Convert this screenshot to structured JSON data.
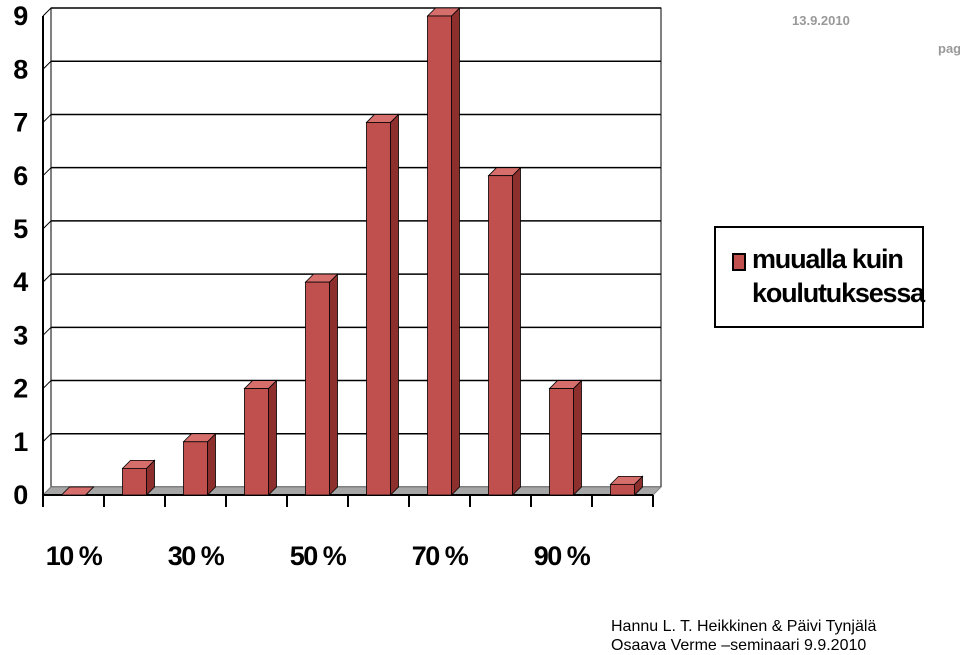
{
  "chart_data": {
    "type": "bar3d",
    "categories": [
      "10 %",
      null,
      "30 %",
      null,
      "50 %",
      null,
      "70 %",
      null,
      "90 %",
      null
    ],
    "series": [
      {
        "name": "muualla kuin koulutuksessa",
        "color": "#c0504d",
        "values": [
          0,
          0.5,
          1,
          2,
          4,
          7,
          9,
          6,
          2,
          0.2
        ]
      }
    ],
    "ylim": [
      0,
      9
    ],
    "yticks": [
      0,
      1,
      2,
      3,
      4,
      5,
      6,
      7,
      8,
      9
    ],
    "grid": true,
    "legend": "right"
  },
  "slide": {
    "date": "13.9.2010",
    "page": "pag",
    "footer": [
      "Hannu L. T. Heikkinen & Päivi Tynjälä",
      "Osaava Verme –seminaari 9.9.2010"
    ]
  }
}
